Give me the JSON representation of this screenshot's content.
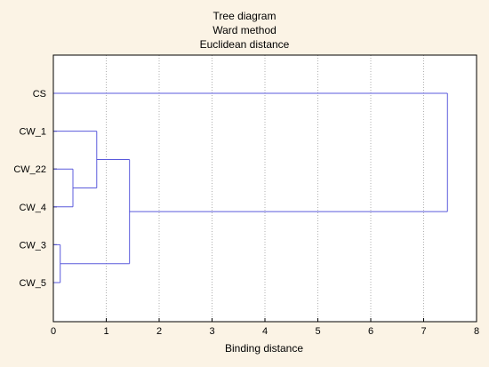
{
  "chart_data": {
    "type": "dendrogram",
    "title": [
      "Tree diagram",
      "Ward method",
      "Euclidean distance"
    ],
    "xlabel": "Binding distance",
    "ylabel": "",
    "xlim": [
      0,
      8
    ],
    "x_ticks": [
      0,
      1,
      2,
      3,
      4,
      5,
      6,
      7,
      8
    ],
    "grid": "vertical dotted",
    "line_color": "#5a5adc",
    "leaves": [
      "CS",
      "CW_1",
      "CW_22",
      "CW_4",
      "CW_3",
      "CW_5"
    ],
    "merges": [
      {
        "children": [
          "CW_3",
          "CW_5"
        ],
        "distance": 0.13
      },
      {
        "children": [
          "CW_22",
          "CW_4"
        ],
        "distance": 0.37
      },
      {
        "children": [
          "CW_1",
          "CW_22+CW_4"
        ],
        "distance": 0.82
      },
      {
        "children": [
          "CW_1+CW_22+CW_4",
          "CW_3+CW_5"
        ],
        "distance": 1.44
      },
      {
        "children": [
          "CS",
          "CW_1+CW_22+CW_4+CW_3+CW_5"
        ],
        "distance": 7.45
      }
    ]
  }
}
